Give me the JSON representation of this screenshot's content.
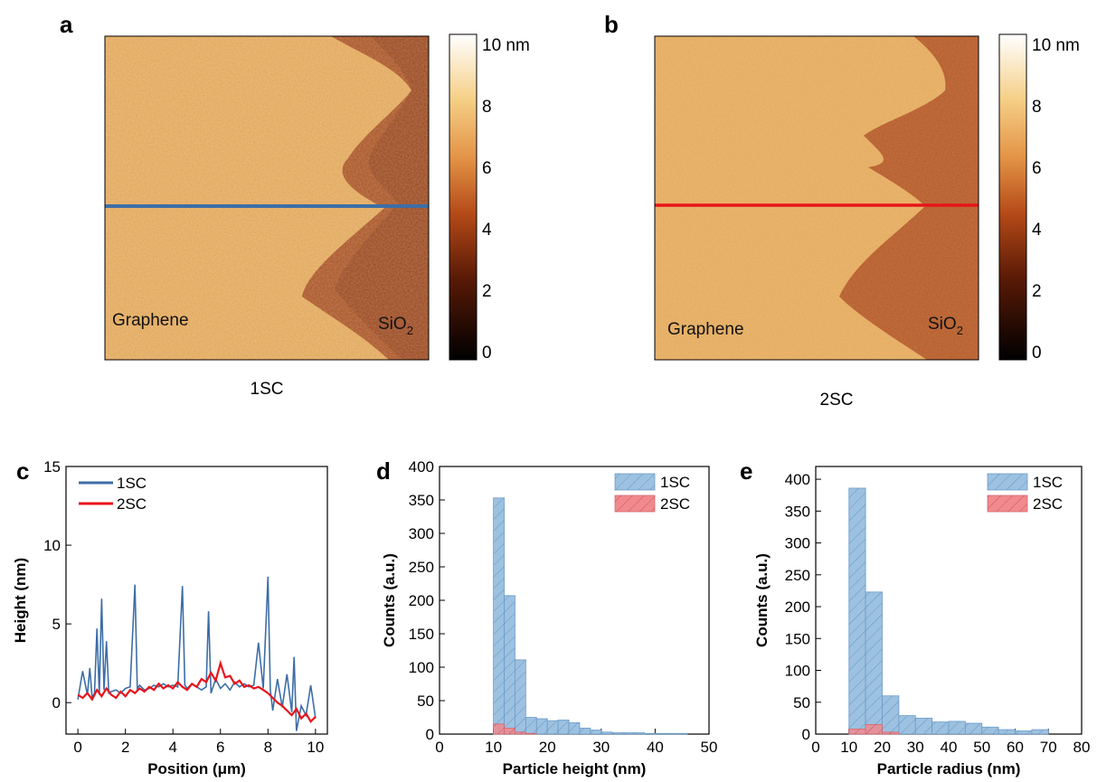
{
  "panels": {
    "a": {
      "letter": "a",
      "caption": "1SC",
      "left_label": "Graphene",
      "right_label_base": "SiO",
      "right_label_sub": "2"
    },
    "b": {
      "letter": "b",
      "caption": "2SC",
      "left_label": "Graphene",
      "right_label_base": "SiO",
      "right_label_sub": "2"
    },
    "c": {
      "letter": "c"
    },
    "d": {
      "letter": "d"
    },
    "e": {
      "letter": "e"
    }
  },
  "colorbar": {
    "unit_label": "10 nm",
    "ticks": [
      "10",
      "8",
      "6",
      "4",
      "2",
      "0"
    ]
  },
  "colors": {
    "blue_line": "#3d6ea6",
    "red_line": "#e8141b",
    "blue_fill": "#9dc1e0",
    "red_fill": "#f08a8e",
    "afm_high": "#ffffff",
    "afm_mid": "#e0a050",
    "afm_low": "#000000"
  },
  "chart_data": [
    {
      "panel": "c",
      "type": "line",
      "xlabel": "Position (μm)",
      "ylabel": "Height (nm)",
      "xlim": [
        -0.5,
        10.5
      ],
      "ylim": [
        -2,
        15
      ],
      "xticks": [
        0,
        2,
        4,
        6,
        8,
        10
      ],
      "yticks": [
        0,
        5,
        10,
        15
      ],
      "legend_position": "top-left",
      "series": [
        {
          "name": "1SC",
          "x": [
            0.0,
            0.2,
            0.4,
            0.5,
            0.6,
            0.7,
            0.8,
            0.9,
            1.0,
            1.1,
            1.2,
            1.3,
            1.4,
            1.6,
            1.8,
            2.0,
            2.2,
            2.4,
            2.5,
            2.6,
            2.8,
            3.0,
            3.2,
            3.4,
            3.6,
            3.8,
            4.0,
            4.2,
            4.4,
            4.5,
            4.6,
            4.8,
            5.0,
            5.2,
            5.4,
            5.5,
            5.6,
            5.8,
            6.0,
            6.2,
            6.4,
            6.6,
            6.8,
            7.0,
            7.2,
            7.4,
            7.6,
            7.8,
            8.0,
            8.1,
            8.2,
            8.4,
            8.6,
            8.8,
            9.0,
            9.1,
            9.2,
            9.4,
            9.6,
            9.8,
            10.0
          ],
          "y": [
            0.2,
            2.0,
            0.5,
            2.2,
            0.3,
            0.6,
            4.7,
            0.5,
            6.6,
            0.8,
            3.9,
            0.6,
            0.7,
            0.8,
            0.6,
            0.9,
            1.0,
            7.5,
            0.9,
            1.1,
            0.8,
            0.9,
            1.1,
            1.0,
            1.2,
            1.0,
            1.1,
            1.0,
            7.4,
            1.1,
            0.9,
            1.2,
            1.0,
            0.8,
            1.0,
            5.8,
            0.6,
            1.5,
            0.9,
            1.2,
            0.8,
            1.3,
            1.0,
            1.2,
            1.0,
            1.1,
            3.8,
            0.9,
            8.0,
            0.8,
            -0.5,
            1.5,
            -0.3,
            1.8,
            -0.6,
            2.9,
            -1.8,
            -0.2,
            -0.8,
            1.1,
            -1.0
          ]
        },
        {
          "name": "2SC",
          "x": [
            0.0,
            0.2,
            0.4,
            0.6,
            0.8,
            1.0,
            1.2,
            1.4,
            1.6,
            1.8,
            2.0,
            2.2,
            2.4,
            2.6,
            2.8,
            3.0,
            3.2,
            3.4,
            3.6,
            3.8,
            4.0,
            4.2,
            4.4,
            4.6,
            4.8,
            5.0,
            5.2,
            5.4,
            5.6,
            5.8,
            6.0,
            6.2,
            6.4,
            6.6,
            6.8,
            7.0,
            7.2,
            7.4,
            7.6,
            7.8,
            8.0,
            8.2,
            8.4,
            8.6,
            8.8,
            9.0,
            9.2,
            9.4,
            9.6,
            9.8,
            10.0
          ],
          "y": [
            0.5,
            0.3,
            0.6,
            0.2,
            0.8,
            0.4,
            0.9,
            0.5,
            0.3,
            0.7,
            0.4,
            0.8,
            0.6,
            0.9,
            0.7,
            1.0,
            0.8,
            1.2,
            0.9,
            1.1,
            0.9,
            1.3,
            1.0,
            0.8,
            1.2,
            1.0,
            1.5,
            1.3,
            1.9,
            1.4,
            2.5,
            1.6,
            1.7,
            1.2,
            1.4,
            1.0,
            1.1,
            0.9,
            1.0,
            0.8,
            0.6,
            0.3,
            0.0,
            -0.2,
            -0.5,
            -0.8,
            -0.4,
            -1.0,
            -0.7,
            -1.2,
            -0.9
          ]
        }
      ]
    },
    {
      "panel": "d",
      "type": "bar",
      "xlabel": "Particle height (nm)",
      "ylabel": "Counts (a.u.)",
      "xlim": [
        0,
        50
      ],
      "ylim": [
        0,
        400
      ],
      "xticks": [
        0,
        10,
        20,
        30,
        40,
        50
      ],
      "yticks": [
        0,
        50,
        100,
        150,
        200,
        250,
        300,
        350,
        400
      ],
      "legend_position": "top-right",
      "bin_edges": [
        10,
        12,
        14,
        16,
        18,
        20,
        22,
        24,
        26,
        28,
        30,
        32,
        34,
        36,
        38,
        40,
        42,
        44,
        46
      ],
      "series": [
        {
          "name": "1SC",
          "values": [
            353,
            207,
            111,
            25,
            23,
            20,
            21,
            17,
            9,
            6,
            3,
            2,
            2,
            2,
            1,
            1,
            1,
            1
          ]
        },
        {
          "name": "2SC",
          "values": [
            15,
            9,
            3,
            1,
            0,
            0,
            0,
            0,
            0,
            0,
            0,
            0,
            0,
            0,
            0,
            0,
            0,
            0
          ]
        }
      ]
    },
    {
      "panel": "e",
      "type": "bar",
      "xlabel": "Particle radius (nm)",
      "ylabel": "Counts (a.u.)",
      "xlim": [
        0,
        80
      ],
      "ylim": [
        0,
        420
      ],
      "xticks": [
        0,
        10,
        20,
        30,
        40,
        50,
        60,
        70,
        80
      ],
      "yticks": [
        0,
        50,
        100,
        150,
        200,
        250,
        300,
        350,
        400
      ],
      "legend_position": "top-right",
      "bin_edges": [
        10,
        15,
        20,
        25,
        30,
        35,
        40,
        45,
        50,
        55,
        60,
        65,
        70
      ],
      "series": [
        {
          "name": "1SC",
          "values": [
            386,
            223,
            60,
            29,
            25,
            19,
            20,
            17,
            11,
            7,
            5,
            7
          ]
        },
        {
          "name": "2SC",
          "values": [
            8,
            15,
            3,
            0,
            0,
            0,
            0,
            0,
            0,
            0,
            0,
            0
          ]
        }
      ]
    }
  ]
}
